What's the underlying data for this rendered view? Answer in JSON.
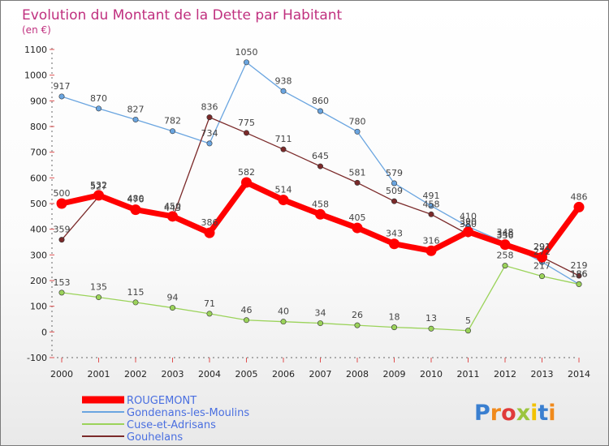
{
  "chart_data": {
    "type": "line",
    "title": "Evolution du Montant de la Dette par Habitant",
    "subtitle": "(en €)",
    "x": [
      "2000",
      "2001",
      "2002",
      "2003",
      "2004",
      "2005",
      "2006",
      "2007",
      "2008",
      "2009",
      "2010",
      "2011",
      "2012",
      "2013",
      "2014"
    ],
    "ylim": [
      -100,
      1100
    ],
    "yticks": [
      -100,
      0,
      100,
      200,
      300,
      400,
      500,
      600,
      700,
      800,
      900,
      1000,
      1100
    ],
    "grid": false,
    "legend_position": "bottom-left",
    "series": [
      {
        "name": "ROUGEMONT",
        "color": "#ff0000",
        "values": [
          500,
          532,
          476,
          450,
          386,
          582,
          514,
          458,
          405,
          343,
          316,
          390,
          340,
          291,
          486
        ],
        "labels": [
          "500",
          "532",
          "476",
          "450",
          "386",
          "582",
          "514",
          "458",
          "405",
          "343",
          "316",
          "390",
          "340",
          "291",
          "486"
        ]
      },
      {
        "name": "Gondenans-les-Moulins",
        "color": "#6aa5e0",
        "values": [
          917,
          870,
          827,
          782,
          734,
          1050,
          938,
          860,
          780,
          579,
          491,
          410,
          348,
          272,
          186
        ],
        "labels": [
          "917",
          "870",
          "827",
          "782",
          "734",
          "1050",
          "938",
          "860",
          "780",
          "579",
          "491",
          "410",
          "348",
          "272",
          "186"
        ]
      },
      {
        "name": "Cuse-et-Adrisans",
        "color": "#9bd35a",
        "values": [
          153,
          135,
          115,
          94,
          71,
          46,
          40,
          34,
          26,
          18,
          13,
          5,
          258,
          217,
          186
        ],
        "labels": [
          "153",
          "135",
          "115",
          "94",
          "71",
          "46",
          "40",
          "34",
          "26",
          "18",
          "13",
          "5",
          "258",
          "217",
          "186"
        ]
      },
      {
        "name": "Gouhelans",
        "color": "#7b2a2a",
        "values": [
          359,
          527,
          480,
          443,
          836,
          775,
          711,
          645,
          581,
          509,
          458,
          380,
          336,
          291,
          219
        ],
        "labels": [
          "359",
          "527",
          "480",
          "443",
          "836",
          "775",
          "711",
          "645",
          "581",
          "509",
          "458",
          "380",
          "336",
          "291",
          "219"
        ]
      }
    ]
  },
  "logo": {
    "text": "Proxiti"
  }
}
